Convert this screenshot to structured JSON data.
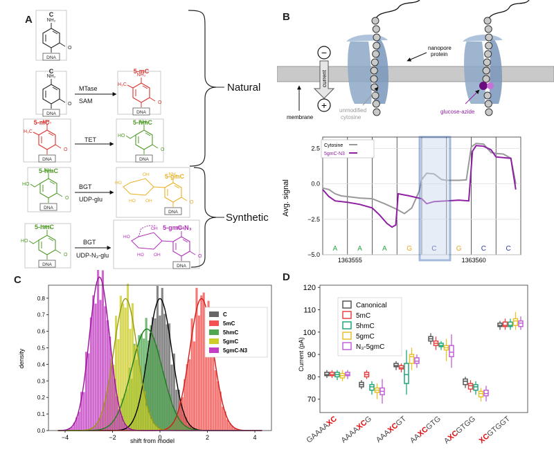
{
  "panel_labels": {
    "a": "A",
    "b": "B",
    "c": "C",
    "d": "D"
  },
  "panel_a": {
    "molecules": {
      "c1": "C",
      "c2": "C",
      "mc_left": "5-mC",
      "mc_right": "5-mC",
      "hmc_left": "5-hmC",
      "hmc_right": "5-hmC",
      "hmc_left2": "5-hmC",
      "gmc": "5-gmC",
      "gmcn3": "5-gmC-N₃"
    },
    "atoms": {
      "nh2": "NH₂",
      "n": "N",
      "o": "O",
      "dna": "DNA",
      "h3c": "H₃C",
      "ho": "HO",
      "oh": "OH"
    },
    "reactions": [
      {
        "enzyme": "MTase",
        "cofactor": "SAM"
      },
      {
        "enzyme": "TET",
        "cofactor": ""
      },
      {
        "enzyme": "BGT",
        "cofactor": "UDP-glu"
      },
      {
        "enzyme": "BGT",
        "cofactor": "UDP-N₃-glu"
      }
    ],
    "groups": {
      "natural": "Natural",
      "synthetic": "Synthetic"
    },
    "colors": {
      "c": "#222222",
      "mc": "#d9312b",
      "hmc": "#4e9a26",
      "gmc": "#e8b020",
      "gmcn3": "#b02db7"
    }
  },
  "panel_b": {
    "labels": {
      "minus": "−",
      "plus": "+",
      "current": "current",
      "membrane": "membrane",
      "nanopore": "nanopore",
      "protein": "protein",
      "unmodified": "unmodified",
      "cytosine": "cytosine",
      "glucose_azide": "glucose-azide"
    },
    "chart_data": {
      "type": "line",
      "ylabel": "Avg. signal",
      "yticks": [
        2.5,
        0.0,
        -2.5,
        -5.0
      ],
      "ytick_labels": [
        "2.5",
        "0.0",
        "−2.5",
        "−5.0"
      ],
      "ylim": [
        -5.0,
        3.3
      ],
      "bases": [
        "A",
        "A",
        "A",
        "G",
        "C",
        "G",
        "C",
        "C"
      ],
      "base_colors": [
        "#2aa84a",
        "#2aa84a",
        "#2aa84a",
        "#e8a628",
        "#2b3a9e",
        "#e8a628",
        "#2b3a9e",
        "#2b3a9e"
      ],
      "xtick_labels": [
        "1363555",
        "1363560"
      ],
      "legend": {
        "placement": "top-left"
      },
      "series": [
        {
          "name": "Cytosine",
          "color": "#999999",
          "x": [
            0,
            0.25,
            0.5,
            0.75,
            1.0,
            1.5,
            2.0,
            2.5,
            3.0,
            3.3,
            3.6,
            3.9,
            4.0,
            4.2,
            4.5,
            4.8,
            5.0,
            5.5,
            5.8,
            6.0,
            6.2,
            6.5,
            6.8,
            7.0,
            7.3,
            7.6,
            7.8
          ],
          "y": [
            -0.3,
            -0.4,
            -0.7,
            -0.85,
            -0.9,
            -1.0,
            -1.05,
            -1.4,
            -1.8,
            -2.1,
            -1.7,
            -0.5,
            0.3,
            0.75,
            0.7,
            0.3,
            0.25,
            0.25,
            0.28,
            2.6,
            2.85,
            2.8,
            2.2,
            2.15,
            2.1,
            1.8,
            0.0
          ]
        },
        {
          "name": "5gmC-N3",
          "color": "#8e1fa2",
          "x": [
            0,
            0.25,
            0.5,
            1.0,
            1.5,
            2.0,
            2.3,
            2.6,
            2.8,
            2.95,
            3.0,
            3.05,
            3.5,
            4.0,
            4.2,
            4.5,
            5.0,
            5.5,
            5.9,
            6.05,
            6.2,
            6.5,
            6.8,
            7.0,
            7.3,
            7.6,
            7.8
          ],
          "y": [
            -0.4,
            -0.9,
            -1.2,
            -1.3,
            -1.45,
            -1.7,
            -2.2,
            -2.8,
            -3.05,
            -2.9,
            -1.8,
            -0.7,
            -0.85,
            -1.05,
            -1.4,
            -1.25,
            -1.2,
            -1.15,
            -1.2,
            2.3,
            2.7,
            2.65,
            2.4,
            1.9,
            1.85,
            1.8,
            -0.4
          ]
        }
      ]
    }
  },
  "panel_c": {
    "chart_data": {
      "type": "histogram",
      "xlabel": "shift from model",
      "ylabel": "density",
      "xlim": [
        -4.7,
        4.7
      ],
      "ylim": [
        0,
        0.82
      ],
      "xticks": [
        -4,
        -2,
        0,
        2,
        4
      ],
      "xtick_labels": [
        "−4",
        "−2",
        "0",
        "2",
        "4"
      ],
      "yticks": [
        0,
        0.1,
        0.2,
        0.3,
        0.4,
        0.5,
        0.6,
        0.7,
        0.8
      ],
      "ytick_labels": [
        "0.0",
        "0.1",
        "0.2",
        "0.3",
        "0.4",
        "0.5",
        "0.6",
        "0.7",
        "0.8"
      ],
      "legend": {
        "placement": "top-right"
      },
      "series": [
        {
          "name": "C",
          "color": "#666666",
          "line": "#000000",
          "mean": 0.0,
          "sd": 0.5
        },
        {
          "name": "5mC",
          "color": "#f25350",
          "line": "#d11a15",
          "mean": 1.75,
          "sd": 0.5
        },
        {
          "name": "5hmC",
          "color": "#4fa84f",
          "line": "#1e7e1e",
          "mean": -0.55,
          "sd": 0.65
        },
        {
          "name": "5gmC",
          "color": "#cdcd2a",
          "line": "#9a9a10",
          "mean": -1.45,
          "sd": 0.5
        },
        {
          "name": "5gmC-N3",
          "color": "#c23fc4",
          "line": "#9a129a",
          "mean": -2.55,
          "sd": 0.43
        }
      ]
    }
  },
  "panel_d": {
    "chart_data": {
      "type": "box",
      "ylabel": "Current (pA)",
      "ylim": [
        64,
        121
      ],
      "yticks": [
        70,
        80,
        90,
        100,
        110,
        120
      ],
      "ytick_labels": [
        "70",
        "80",
        "90",
        "100",
        "110",
        "120"
      ],
      "categories": [
        {
          "pre": "GAAAA",
          "x": "XC",
          "post": ""
        },
        {
          "pre": "AAAA",
          "x": "XC",
          "post": "G"
        },
        {
          "pre": "AAA",
          "x": "XC",
          "post": "GT"
        },
        {
          "pre": "AA",
          "x": "XC",
          "post": "GTG"
        },
        {
          "pre": "A",
          "x": "XC",
          "post": "GTGG"
        },
        {
          "pre": "",
          "x": "XC",
          "post": "GTGGT"
        }
      ],
      "legend": {
        "placement": "top-left",
        "entries": [
          "Canonical",
          "5mC",
          "5hmC",
          "5gmC",
          "N₃-5gmC"
        ]
      },
      "series": [
        {
          "name": "Canonical",
          "color": "#555555",
          "boxes": [
            [
              79.5,
              80.5,
              81,
              82,
              83
            ],
            [
              74.5,
              75.5,
              76.5,
              77.5,
              78.5
            ],
            [
              83,
              84.5,
              85,
              86,
              87
            ],
            [
              94.5,
              96,
              97,
              98,
              99.5
            ],
            [
              75,
              76.5,
              78,
              79,
              80
            ],
            [
              101,
              102.5,
              103,
              104,
              105
            ]
          ]
        },
        {
          "name": "5mC",
          "color": "#e84040",
          "boxes": [
            [
              79.5,
              80.5,
              81,
              82,
              83
            ],
            [
              79,
              80,
              81,
              82,
              83
            ],
            [
              82,
              83.5,
              84,
              85,
              86
            ],
            [
              92,
              94,
              95,
              96,
              98
            ],
            [
              73,
              74.5,
              76,
              77,
              78.5
            ],
            [
              101,
              102.5,
              103,
              104.5,
              106
            ]
          ]
        },
        {
          "name": "5hmC",
          "color": "#1fa67a",
          "boxes": [
            [
              78.5,
              80,
              81,
              82,
              83
            ],
            [
              72,
              74,
              75.5,
              76.5,
              78
            ],
            [
              72,
              77,
              81,
              86,
              92
            ],
            [
              92,
              93.5,
              94,
              95,
              96
            ],
            [
              72,
              74,
              75.5,
              76.5,
              78
            ],
            [
              101,
              102.5,
              103,
              104.5,
              106
            ]
          ]
        },
        {
          "name": "5gmC",
          "color": "#e8c02a",
          "boxes": [
            [
              78,
              79.5,
              80.5,
              81.5,
              83
            ],
            [
              70,
              73,
              74,
              75,
              77
            ],
            [
              83,
              86,
              89,
              90,
              93
            ],
            [
              87,
              92,
              93,
              94,
              97
            ],
            [
              69,
              71,
              72.5,
              73.5,
              75
            ],
            [
              101,
              103,
              105,
              106,
              109
            ]
          ]
        },
        {
          "name": "N₃-5gmC",
          "color": "#c060d8",
          "boxes": [
            [
              79,
              80.5,
              81,
              82,
              83
            ],
            [
              68,
              72,
              73.5,
              75,
              79
            ],
            [
              84,
              86,
              87,
              88.5,
              90
            ],
            [
              84,
              89,
              91,
              94,
              99
            ],
            [
              69,
              71.5,
              72.5,
              74,
              76
            ],
            [
              101,
              102.5,
              104,
              105,
              107
            ]
          ]
        }
      ]
    }
  }
}
